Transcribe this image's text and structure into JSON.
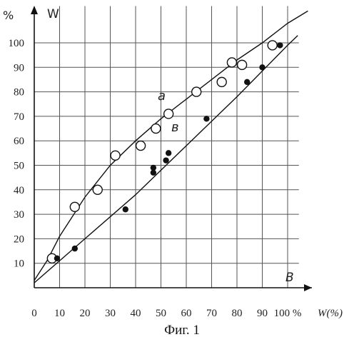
{
  "figure": {
    "caption": "Фиг. 1"
  },
  "chart_data": {
    "type": "scatter",
    "title": "",
    "y_axis_label": "W",
    "y_unit_label": "%",
    "x_axis_label": "W(%)",
    "x_point_label": "B",
    "xlim": [
      0,
      105
    ],
    "ylim": [
      0,
      115
    ],
    "x_ticks": [
      {
        "value": 0,
        "label": "0"
      },
      {
        "value": 10,
        "label": "10"
      },
      {
        "value": 20,
        "label": "20"
      },
      {
        "value": 30,
        "label": "30"
      },
      {
        "value": 40,
        "label": "40"
      },
      {
        "value": 50,
        "label": "50"
      },
      {
        "value": 60,
        "label": "60"
      },
      {
        "value": 70,
        "label": "70"
      },
      {
        "value": 80,
        "label": "80"
      },
      {
        "value": 90,
        "label": "90"
      },
      {
        "value": 100,
        "label": "100 %"
      }
    ],
    "y_ticks": [
      {
        "value": 10,
        "label": "10"
      },
      {
        "value": 20,
        "label": "20"
      },
      {
        "value": 30,
        "label": "30"
      },
      {
        "value": 40,
        "label": "40"
      },
      {
        "value": 50,
        "label": "50"
      },
      {
        "value": 60,
        "label": "60"
      },
      {
        "value": 70,
        "label": "70"
      },
      {
        "value": 80,
        "label": "80"
      },
      {
        "value": 90,
        "label": "90"
      },
      {
        "value": 100,
        "label": "100"
      }
    ],
    "grid": true,
    "series": [
      {
        "name": "a",
        "marker": "open-circle",
        "points": [
          {
            "x": 7,
            "y": 12
          },
          {
            "x": 16,
            "y": 33
          },
          {
            "x": 25,
            "y": 40
          },
          {
            "x": 32,
            "y": 54
          },
          {
            "x": 42,
            "y": 58
          },
          {
            "x": 48,
            "y": 65
          },
          {
            "x": 53,
            "y": 71
          },
          {
            "x": 64,
            "y": 80
          },
          {
            "x": 74,
            "y": 84
          },
          {
            "x": 78,
            "y": 92
          },
          {
            "x": 82,
            "y": 91
          },
          {
            "x": 94,
            "y": 99
          }
        ],
        "curve": [
          {
            "x": 0,
            "y": 3
          },
          {
            "x": 5,
            "y": 11
          },
          {
            "x": 10,
            "y": 21
          },
          {
            "x": 20,
            "y": 37
          },
          {
            "x": 30,
            "y": 50
          },
          {
            "x": 40,
            "y": 60
          },
          {
            "x": 50,
            "y": 69
          },
          {
            "x": 60,
            "y": 77
          },
          {
            "x": 70,
            "y": 85
          },
          {
            "x": 80,
            "y": 93
          },
          {
            "x": 90,
            "y": 100
          },
          {
            "x": 100,
            "y": 108
          },
          {
            "x": 108,
            "y": 113
          }
        ]
      },
      {
        "name": "в",
        "marker": "filled-circle",
        "points": [
          {
            "x": 9,
            "y": 12
          },
          {
            "x": 16,
            "y": 16
          },
          {
            "x": 36,
            "y": 32
          },
          {
            "x": 47,
            "y": 47
          },
          {
            "x": 47,
            "y": 49
          },
          {
            "x": 52,
            "y": 52
          },
          {
            "x": 53,
            "y": 55
          },
          {
            "x": 68,
            "y": 69
          },
          {
            "x": 84,
            "y": 84
          },
          {
            "x": 90,
            "y": 90
          },
          {
            "x": 97,
            "y": 99
          }
        ],
        "curve": [
          {
            "x": 0,
            "y": 2
          },
          {
            "x": 20,
            "y": 20
          },
          {
            "x": 40,
            "y": 38
          },
          {
            "x": 60,
            "y": 58
          },
          {
            "x": 80,
            "y": 78
          },
          {
            "x": 100,
            "y": 99
          },
          {
            "x": 104,
            "y": 103
          }
        ]
      }
    ]
  }
}
